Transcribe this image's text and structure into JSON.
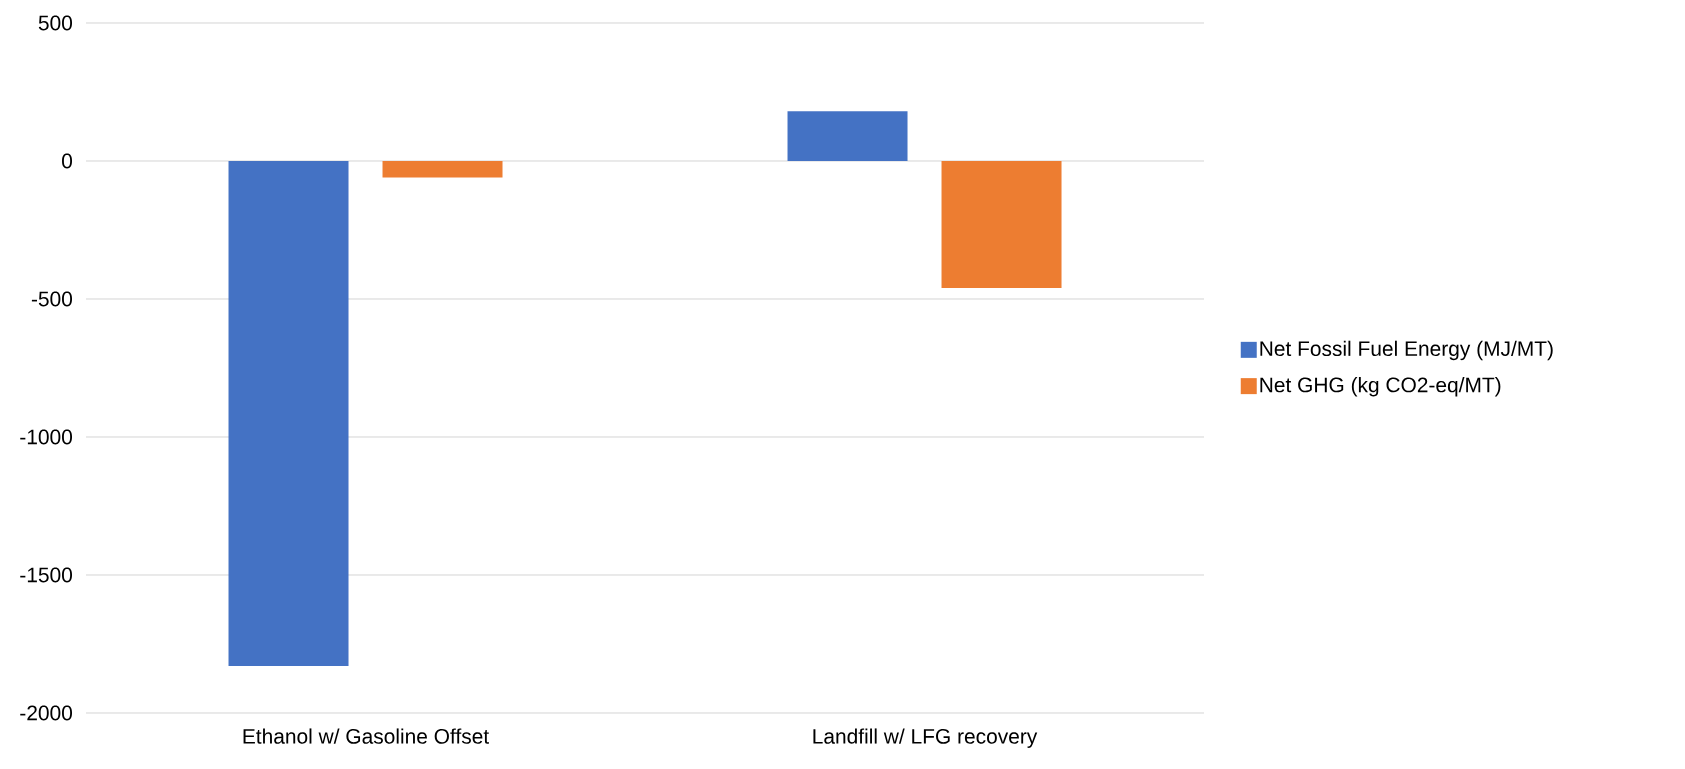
{
  "chart_data": {
    "type": "bar",
    "categories": [
      "Ethanol w/ Gasoline Offset",
      "Landfill w/ LFG recovery"
    ],
    "series": [
      {
        "name": "Net Fossil Fuel Energy (MJ/MT)",
        "color": "#4472c4",
        "values": [
          -1830,
          180
        ]
      },
      {
        "name": "Net GHG (kg CO2-eq/MT)",
        "color": "#ed7d31",
        "values": [
          -60,
          -460
        ]
      }
    ],
    "ylim": [
      -2000,
      500
    ],
    "yticks": [
      -2000,
      -1500,
      -1000,
      -500,
      0,
      500
    ],
    "grid": "y",
    "legend": "right"
  }
}
